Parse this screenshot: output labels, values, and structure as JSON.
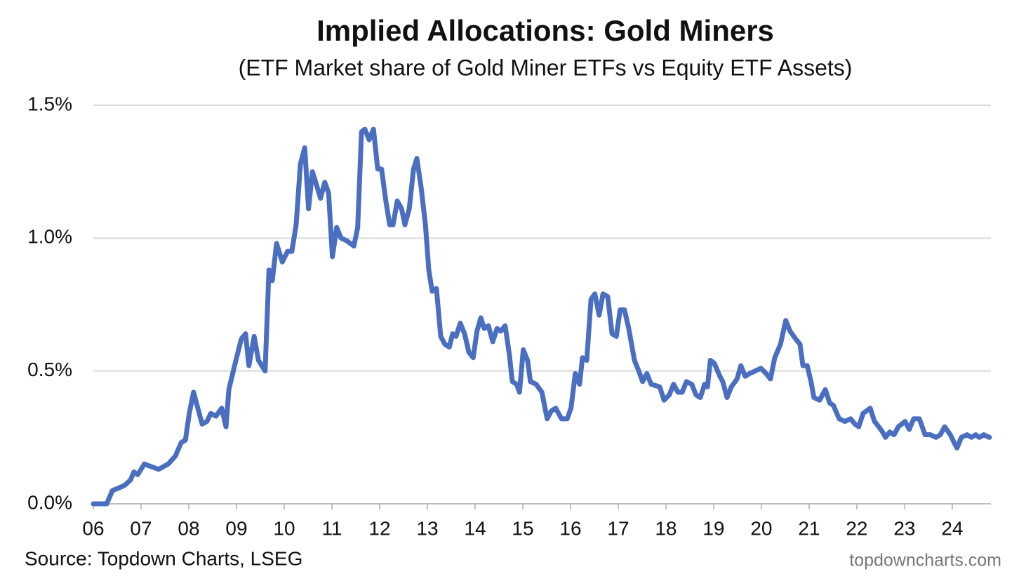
{
  "chart_data": {
    "type": "line",
    "title": "Implied Allocations: Gold Miners",
    "subtitle": "(ETF Market share of Gold Miner ETFs vs Equity ETF Assets)",
    "source": "Source: Topdown Charts, LSEG",
    "watermark": "topdowncharts.com",
    "color": "#4a6fc0",
    "grid": true,
    "xlim": [
      2006,
      2024.81
    ],
    "xticks": [
      {
        "value": 2006,
        "label": "06"
      },
      {
        "value": 2007,
        "label": "07"
      },
      {
        "value": 2008,
        "label": "08"
      },
      {
        "value": 2009,
        "label": "09"
      },
      {
        "value": 2010,
        "label": "10"
      },
      {
        "value": 2011,
        "label": "11"
      },
      {
        "value": 2012,
        "label": "12"
      },
      {
        "value": 2013,
        "label": "13"
      },
      {
        "value": 2014,
        "label": "14"
      },
      {
        "value": 2015,
        "label": "15"
      },
      {
        "value": 2016,
        "label": "16"
      },
      {
        "value": 2017,
        "label": "17"
      },
      {
        "value": 2018,
        "label": "18"
      },
      {
        "value": 2019,
        "label": "19"
      },
      {
        "value": 2020,
        "label": "20"
      },
      {
        "value": 2021,
        "label": "21"
      },
      {
        "value": 2022,
        "label": "22"
      },
      {
        "value": 2023,
        "label": "23"
      },
      {
        "value": 2024,
        "label": "24"
      }
    ],
    "ylim": [
      0,
      1.5
    ],
    "yticks": [
      {
        "value": 0,
        "label": "0.0%"
      },
      {
        "value": 0.5,
        "label": "0.5%"
      },
      {
        "value": 1,
        "label": "1.0%"
      },
      {
        "value": 1.5,
        "label": "1.5%"
      }
    ],
    "x": [
      2006.0,
      2006.28,
      2006.4,
      2006.54,
      2006.66,
      2006.78,
      2006.85,
      2006.93,
      2007.07,
      2007.21,
      2007.37,
      2007.57,
      2007.72,
      2007.84,
      2007.93,
      2008.01,
      2008.1,
      2008.19,
      2008.28,
      2008.38,
      2008.46,
      2008.57,
      2008.69,
      2008.78,
      2008.84,
      2008.96,
      2009.1,
      2009.19,
      2009.26,
      2009.37,
      2009.46,
      2009.6,
      2009.68,
      2009.75,
      2009.84,
      2009.96,
      2010.07,
      2010.16,
      2010.25,
      2010.34,
      2010.43,
      2010.51,
      2010.59,
      2010.66,
      2010.76,
      2010.85,
      2010.93,
      2011.01,
      2011.1,
      2011.19,
      2011.31,
      2011.46,
      2011.54,
      2011.62,
      2011.69,
      2011.78,
      2011.87,
      2011.96,
      2012.04,
      2012.13,
      2012.21,
      2012.28,
      2012.37,
      2012.46,
      2012.53,
      2012.62,
      2012.71,
      2012.78,
      2012.87,
      2012.96,
      2013.03,
      2013.1,
      2013.19,
      2013.28,
      2013.37,
      2013.46,
      2013.53,
      2013.6,
      2013.69,
      2013.78,
      2013.87,
      2013.96,
      2014.04,
      2014.12,
      2014.19,
      2014.28,
      2014.37,
      2014.46,
      2014.54,
      2014.63,
      2014.72,
      2014.78,
      2014.87,
      2014.93,
      2015.01,
      2015.1,
      2015.16,
      2015.28,
      2015.4,
      2015.51,
      2015.6,
      2015.69,
      2015.81,
      2015.93,
      2016.01,
      2016.1,
      2016.19,
      2016.25,
      2016.34,
      2016.43,
      2016.51,
      2016.6,
      2016.68,
      2016.78,
      2016.87,
      2016.96,
      2017.04,
      2017.13,
      2017.22,
      2017.34,
      2017.43,
      2017.51,
      2017.6,
      2017.69,
      2017.87,
      2017.96,
      2018.07,
      2018.16,
      2018.25,
      2018.34,
      2018.43,
      2018.54,
      2018.63,
      2018.72,
      2018.81,
      2018.87,
      2018.93,
      2019.01,
      2019.13,
      2019.19,
      2019.28,
      2019.37,
      2019.49,
      2019.57,
      2019.66,
      2019.75,
      2019.87,
      2019.99,
      2020.1,
      2020.19,
      2020.28,
      2020.4,
      2020.51,
      2020.6,
      2020.72,
      2020.81,
      2020.87,
      2020.96,
      2021.04,
      2021.1,
      2021.22,
      2021.34,
      2021.43,
      2021.51,
      2021.63,
      2021.75,
      2021.87,
      2021.96,
      2022.04,
      2022.13,
      2022.28,
      2022.37,
      2022.46,
      2022.54,
      2022.6,
      2022.69,
      2022.78,
      2022.87,
      2023.01,
      2023.1,
      2023.19,
      2023.31,
      2023.43,
      2023.54,
      2023.66,
      2023.75,
      2023.84,
      2023.96,
      2024.04,
      2024.1,
      2024.19,
      2024.31,
      2024.4,
      2024.49,
      2024.57,
      2024.66,
      2024.78
    ],
    "values": [
      0,
      0,
      0.05,
      0.06,
      0.07,
      0.09,
      0.12,
      0.11,
      0.15,
      0.14,
      0.13,
      0.15,
      0.18,
      0.23,
      0.24,
      0.34,
      0.42,
      0.36,
      0.3,
      0.31,
      0.34,
      0.33,
      0.36,
      0.29,
      0.43,
      0.52,
      0.62,
      0.64,
      0.52,
      0.63,
      0.54,
      0.5,
      0.88,
      0.84,
      0.98,
      0.91,
      0.95,
      0.95,
      1.05,
      1.28,
      1.34,
      1.11,
      1.25,
      1.21,
      1.15,
      1.21,
      1.17,
      0.93,
      1.04,
      1.0,
      0.99,
      0.97,
      1.04,
      1.4,
      1.41,
      1.37,
      1.41,
      1.26,
      1.26,
      1.14,
      1.05,
      1.05,
      1.14,
      1.11,
      1.05,
      1.11,
      1.26,
      1.3,
      1.19,
      1.05,
      0.88,
      0.8,
      0.81,
      0.63,
      0.6,
      0.59,
      0.64,
      0.63,
      0.68,
      0.64,
      0.57,
      0.55,
      0.65,
      0.7,
      0.66,
      0.67,
      0.61,
      0.66,
      0.65,
      0.67,
      0.56,
      0.46,
      0.45,
      0.42,
      0.58,
      0.54,
      0.46,
      0.45,
      0.42,
      0.32,
      0.35,
      0.36,
      0.32,
      0.32,
      0.36,
      0.49,
      0.45,
      0.55,
      0.54,
      0.77,
      0.79,
      0.71,
      0.79,
      0.78,
      0.64,
      0.63,
      0.73,
      0.73,
      0.66,
      0.54,
      0.5,
      0.46,
      0.49,
      0.45,
      0.44,
      0.39,
      0.41,
      0.45,
      0.42,
      0.42,
      0.46,
      0.45,
      0.41,
      0.4,
      0.45,
      0.44,
      0.54,
      0.53,
      0.48,
      0.46,
      0.4,
      0.44,
      0.47,
      0.52,
      0.48,
      0.49,
      0.5,
      0.51,
      0.49,
      0.47,
      0.55,
      0.6,
      0.69,
      0.65,
      0.62,
      0.6,
      0.52,
      0.52,
      0.46,
      0.4,
      0.39,
      0.43,
      0.38,
      0.37,
      0.32,
      0.31,
      0.32,
      0.3,
      0.29,
      0.34,
      0.36,
      0.31,
      0.29,
      0.27,
      0.25,
      0.27,
      0.26,
      0.29,
      0.31,
      0.28,
      0.32,
      0.32,
      0.26,
      0.26,
      0.25,
      0.26,
      0.29,
      0.26,
      0.23,
      0.21,
      0.25,
      0.26,
      0.25,
      0.26,
      0.25,
      0.26,
      0.25
    ]
  }
}
